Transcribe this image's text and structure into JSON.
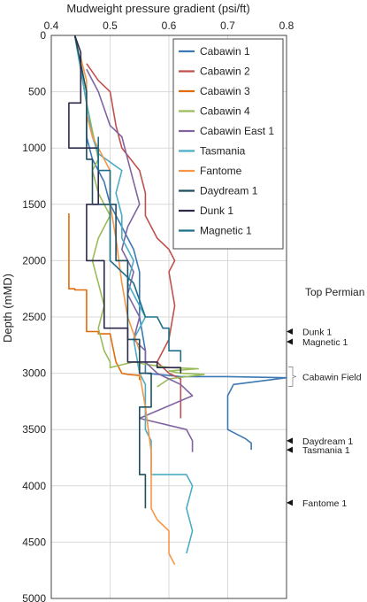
{
  "chart_data": {
    "type": "line",
    "title": "",
    "xlabel": "Mudweight pressure gradient (psi/ft)",
    "ylabel": "Depth (mMD)",
    "xlim": [
      0.4,
      0.8
    ],
    "ylim": [
      0,
      5000
    ],
    "y_inverted": true,
    "x_axis_position": "top",
    "x_ticks": [
      0.4,
      0.5,
      0.6,
      0.7,
      0.8
    ],
    "x_tick_labels": [
      "0.4",
      "0.5",
      "0.6",
      "0.7",
      "0.8"
    ],
    "y_ticks": [
      0,
      500,
      1000,
      1500,
      2000,
      2500,
      3000,
      3500,
      4000,
      4500,
      5000
    ],
    "y_tick_labels": [
      "0",
      "500",
      "1000",
      "1500",
      "2000",
      "2500",
      "3000",
      "3500",
      "4000",
      "4500",
      "5000"
    ],
    "grid": true,
    "legend_position": "top-right",
    "series": [
      {
        "name": "Cabawin 1",
        "color": "#3c78b4",
        "x": [
          0.44,
          0.45,
          0.46,
          0.46,
          0.47,
          0.49,
          0.5,
          0.52,
          0.54,
          0.55,
          0.55,
          0.56,
          0.56,
          0.6,
          0.62,
          0.7,
          0.8,
          0.71,
          0.7,
          0.7,
          0.73,
          0.74,
          0.74
        ],
        "y": [
          0,
          300,
          600,
          900,
          1100,
          1300,
          1500,
          1700,
          1900,
          2100,
          2500,
          2800,
          3000,
          3020,
          3030,
          3030,
          3040,
          3100,
          3200,
          3500,
          3580,
          3620,
          3680
        ]
      },
      {
        "name": "Cabawin 2",
        "color": "#c0504d",
        "x": [
          0.46,
          0.48,
          0.5,
          0.51,
          0.52,
          0.55,
          0.56,
          0.56,
          0.58,
          0.6,
          0.61,
          0.6,
          0.61,
          0.6,
          0.58,
          0.6,
          0.62,
          0.62
        ],
        "y": [
          250,
          400,
          500,
          800,
          1000,
          1200,
          1400,
          1600,
          1800,
          1900,
          2000,
          2100,
          2400,
          2700,
          2900,
          3000,
          3050,
          3400
        ]
      },
      {
        "name": "Cabawin 3",
        "color": "#e36c0a",
        "x": [
          0.43,
          0.43,
          0.44,
          0.44,
          0.46,
          0.46,
          0.48,
          0.48,
          0.5,
          0.51,
          0.52,
          0.53,
          0.55,
          0.55
        ],
        "y": [
          1580,
          2250,
          2250,
          2260,
          2260,
          2630,
          2630,
          2650,
          2650,
          2900,
          3000,
          3010,
          3020,
          3060
        ]
      },
      {
        "name": "Cabawin 4",
        "color": "#9bbb59",
        "x": [
          0.44,
          0.46,
          0.48,
          0.47,
          0.48,
          0.5,
          0.48,
          0.47,
          0.48,
          0.49,
          0.48,
          0.49,
          0.5,
          0.5,
          0.54,
          0.56,
          0.6,
          0.65,
          0.6,
          0.62,
          0.66,
          0.6,
          0.58
        ],
        "y": [
          0,
          600,
          1100,
          1200,
          1400,
          1600,
          1800,
          2000,
          2200,
          2400,
          2600,
          2800,
          2900,
          2950,
          2900,
          2920,
          2950,
          2960,
          2980,
          3000,
          3010,
          3050,
          3120
        ]
      },
      {
        "name": "Cabawin East 1",
        "color": "#8064a2",
        "x": [
          0.46,
          0.48,
          0.5,
          0.52,
          0.53,
          0.54,
          0.55,
          0.53,
          0.52,
          0.54,
          0.53,
          0.55,
          0.54,
          0.56,
          0.56,
          0.58,
          0.6,
          0.62,
          0.64,
          0.55,
          0.63,
          0.64,
          0.64
        ],
        "y": [
          300,
          500,
          800,
          900,
          1100,
          1300,
          1500,
          1700,
          1900,
          2100,
          2300,
          2500,
          2700,
          2800,
          2900,
          3000,
          3050,
          3100,
          3200,
          3400,
          3500,
          3600,
          3700
        ]
      },
      {
        "name": "Tasmania",
        "color": "#4bacc6",
        "x": [
          0.44,
          0.45,
          0.46,
          0.47,
          0.48,
          0.52,
          0.51,
          0.52,
          0.52,
          0.54,
          0.53,
          0.56,
          0.54,
          0.55,
          0.56,
          0.56,
          0.57,
          0.57,
          0.63,
          0.64,
          0.63,
          0.64,
          0.63
        ],
        "y": [
          0,
          300,
          600,
          900,
          1050,
          1200,
          1400,
          1600,
          1800,
          2000,
          2200,
          2500,
          2700,
          3000,
          3100,
          3500,
          3600,
          3900,
          3900,
          4000,
          4200,
          4400,
          4600
        ]
      },
      {
        "name": "Fantome",
        "color": "#f79646",
        "x": [
          0.45,
          0.46,
          0.46,
          0.47,
          0.48,
          0.5,
          0.5,
          0.51,
          0.52,
          0.53,
          0.55,
          0.55,
          0.56,
          0.57,
          0.57,
          0.58,
          0.6,
          0.6,
          0.61
        ],
        "y": [
          200,
          400,
          700,
          900,
          1000,
          1200,
          1500,
          1800,
          2200,
          2500,
          2800,
          3000,
          3300,
          3700,
          4200,
          4300,
          4400,
          4600,
          4700
        ]
      },
      {
        "name": "Daydream 1",
        "color": "#1f4e5f",
        "x": [
          0.44,
          0.46,
          0.46,
          0.47,
          0.47,
          0.51,
          0.51,
          0.53,
          0.53,
          0.55,
          0.55,
          0.57,
          0.57,
          0.55,
          0.55,
          0.56,
          0.56
        ],
        "y": [
          0,
          500,
          1100,
          1100,
          1500,
          1500,
          2000,
          2000,
          2700,
          2700,
          3000,
          3000,
          3300,
          3300,
          3900,
          3900,
          4200
        ]
      },
      {
        "name": "Dunk 1",
        "color": "#2c2a4a",
        "x": [
          0.44,
          0.45,
          0.45,
          0.43,
          0.43,
          0.48,
          0.48,
          0.46,
          0.46,
          0.49,
          0.49,
          0.53,
          0.53,
          0.58,
          0.58,
          0.62,
          0.62
        ],
        "y": [
          0,
          150,
          600,
          600,
          1000,
          1000,
          1500,
          1500,
          2000,
          2000,
          2600,
          2600,
          2900,
          2900,
          2950,
          2950,
          3000
        ]
      },
      {
        "name": "Magnetic 1",
        "color": "#1f6f8b",
        "x": [
          0.48,
          0.48,
          0.5,
          0.5,
          0.5,
          0.54,
          0.56,
          0.58,
          0.59,
          0.6,
          0.6,
          0.62,
          0.62
        ],
        "y": [
          900,
          1200,
          1200,
          1400,
          2000,
          2200,
          2500,
          2500,
          2600,
          2600,
          2800,
          2800,
          2900
        ]
      }
    ],
    "annotations": {
      "heading": "Top Permian",
      "markers": [
        {
          "label": "Dunk 1",
          "depth": 2630
        },
        {
          "label": "Magnetic 1",
          "depth": 2720
        },
        {
          "label": "Daydream 1",
          "depth": 3600
        },
        {
          "label": "Tasmania 1",
          "depth": 3680
        },
        {
          "label": "Fantome 1",
          "depth": 4150
        }
      ],
      "bracket_label": "Cabawin Field",
      "bracket_depth": 3030
    }
  }
}
